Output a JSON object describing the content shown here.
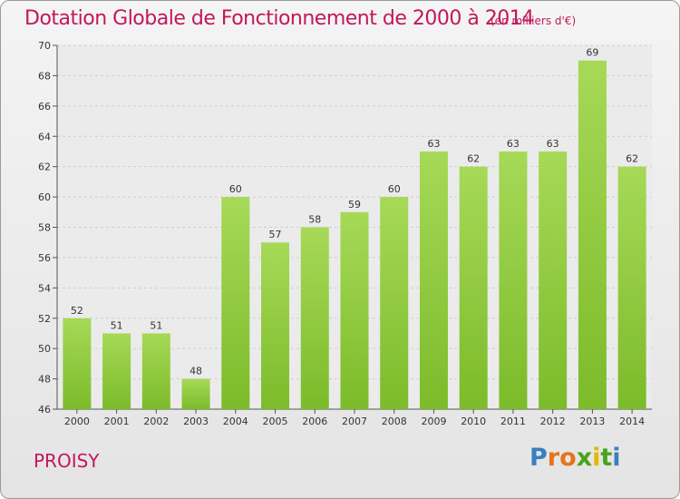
{
  "header": {
    "title": "Dotation Globale de Fonctionnement de 2000 à 2014",
    "subtitle": "(en milliers d'€)"
  },
  "footer": {
    "commune": "PROISY",
    "logo_letters": [
      "P",
      "r",
      "o",
      "x",
      "i",
      "t",
      "i"
    ],
    "logo_colors": [
      "#3a7fc1",
      "#e8731c",
      "#e8731c",
      "#4aa21d",
      "#e2b800",
      "#4aa21d",
      "#3a7fc1"
    ]
  },
  "colors": {
    "bar": "#7cbb2a",
    "bar_light": "#a6d957",
    "title": "#c2185b"
  },
  "chart_data": {
    "type": "bar",
    "title": "Dotation Globale de Fonctionnement de 2000 à 2014",
    "subtitle": "(en milliers d'€)",
    "categories": [
      "2000",
      "2001",
      "2002",
      "2003",
      "2004",
      "2005",
      "2006",
      "2007",
      "2008",
      "2009",
      "2010",
      "2011",
      "2012",
      "2013",
      "2014"
    ],
    "values": [
      52,
      51,
      51,
      48,
      60,
      57,
      58,
      59,
      60,
      63,
      62,
      63,
      63,
      69,
      62
    ],
    "ylim": [
      46,
      70
    ],
    "yticks": [
      46,
      48,
      50,
      52,
      54,
      56,
      58,
      60,
      62,
      64,
      66,
      68,
      70
    ],
    "grid": true,
    "data_labels": true
  }
}
